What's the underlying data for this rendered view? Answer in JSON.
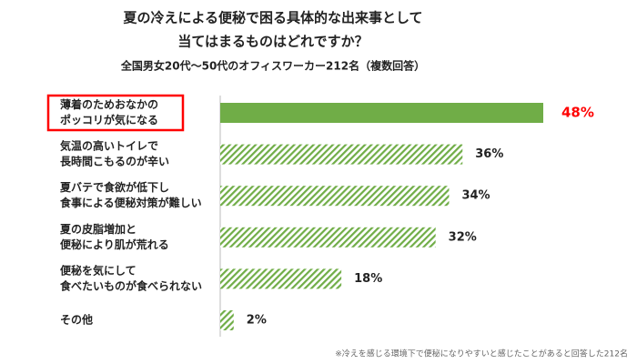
{
  "chart_data": {
    "type": "bar",
    "orientation": "horizontal",
    "title": [
      "夏の冷えによる便秘で困る具体的な出来事として",
      "当てはまるものはどれですか？"
    ],
    "subtitle": "全国男女20代〜50代のオフィスワーカー212名（複数回答）",
    "categories": [
      [
        "薄着のためおなかの",
        "ポッコリが気になる"
      ],
      [
        "気温の高いトイレで",
        "長時間こもるのが辛い"
      ],
      [
        "夏バテで食欲が低下し",
        "食事による便秘対策が難しい"
      ],
      [
        "夏の皮脂増加と",
        "便秘により肌が荒れる"
      ],
      [
        "便秘を気にして",
        "食べたいものが食べられない"
      ],
      [
        "その他"
      ]
    ],
    "values": [
      48,
      36,
      34,
      32,
      18,
      2
    ],
    "value_labels": [
      "48%",
      "36%",
      "34%",
      "32%",
      "18%",
      "2%"
    ],
    "color": "#70ad47",
    "highlight_index": 0,
    "highlight_color": "#ff0000",
    "footnote": "※冷えを感じる環境下で便秘になりやすいと感じたことがあると回答した212名"
  }
}
